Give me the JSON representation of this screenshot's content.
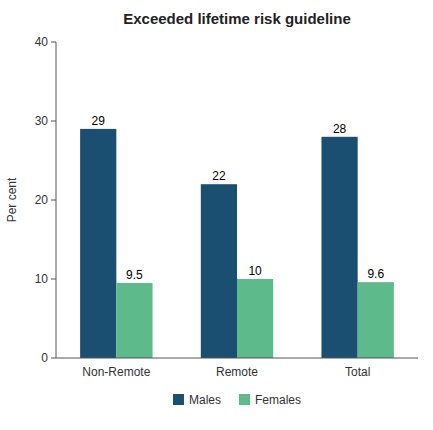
{
  "chart_data": {
    "type": "bar",
    "title": "Exceeded lifetime risk guideline",
    "categories": [
      "Non-Remote",
      "Remote",
      "Total"
    ],
    "series": [
      {
        "name": "Males",
        "color": "#1b4f72",
        "values": [
          29,
          22,
          28
        ]
      },
      {
        "name": "Females",
        "color": "#5dba8a",
        "values": [
          9.5,
          10,
          9.6
        ]
      }
    ],
    "ylabel": "Per cent",
    "ylim": [
      0,
      40
    ],
    "yticks": [
      0,
      10,
      20,
      30,
      40
    ],
    "grid": false,
    "legend": "bottom",
    "data_labels": true
  }
}
